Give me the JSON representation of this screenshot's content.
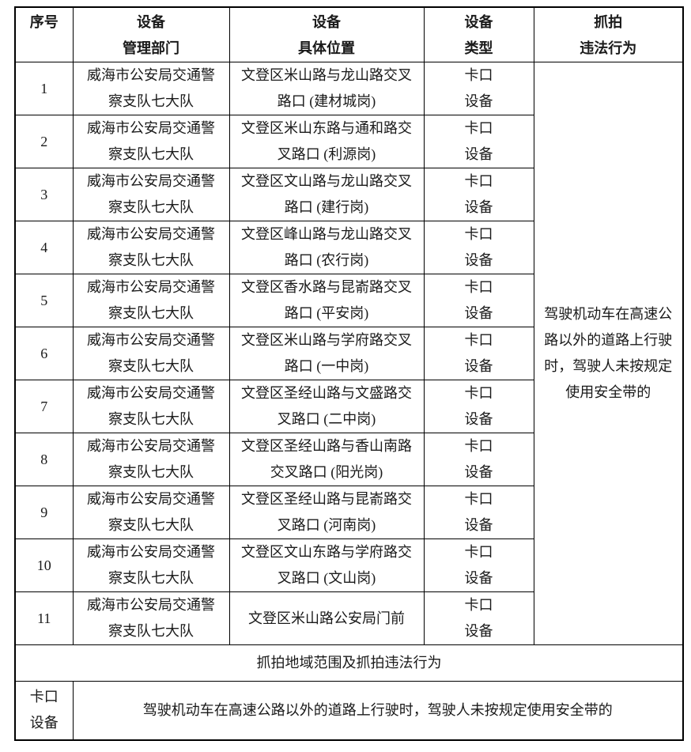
{
  "colors": {
    "background": "#ffffff",
    "border": "#000000",
    "text": "#1a1a1a"
  },
  "table": {
    "headers": [
      "序号",
      "设备\n管理部门",
      "设备\n具体位置",
      "设备\n类型",
      "抓拍\n违法行为"
    ],
    "rows": [
      {
        "no": "1",
        "dept": "威海市公安局交通警\n察支队七大队",
        "location": "文登区米山路与龙山路交叉\n路口 (建材城岗)",
        "type": "卡口\n设备"
      },
      {
        "no": "2",
        "dept": "威海市公安局交通警\n察支队七大队",
        "location": "文登区米山东路与通和路交\n叉路口 (利源岗)",
        "type": "卡口\n设备"
      },
      {
        "no": "3",
        "dept": "威海市公安局交通警\n察支队七大队",
        "location": "文登区文山路与龙山路交叉\n路口 (建行岗)",
        "type": "卡口\n设备"
      },
      {
        "no": "4",
        "dept": "威海市公安局交通警\n察支队七大队",
        "location": "文登区峰山路与龙山路交叉\n路口 (农行岗)",
        "type": "卡口\n设备"
      },
      {
        "no": "5",
        "dept": "威海市公安局交通警\n察支队七大队",
        "location": "文登区香水路与昆嵛路交叉\n路口 (平安岗)",
        "type": "卡口\n设备"
      },
      {
        "no": "6",
        "dept": "威海市公安局交通警\n察支队七大队",
        "location": "文登区米山路与学府路交叉\n路口 (一中岗)",
        "type": "卡口\n设备"
      },
      {
        "no": "7",
        "dept": "威海市公安局交通警\n察支队七大队",
        "location": "文登区圣经山路与文盛路交\n叉路口 (二中岗)",
        "type": "卡口\n设备"
      },
      {
        "no": "8",
        "dept": "威海市公安局交通警\n察支队七大队",
        "location": "文登区圣经山路与香山南路\n交叉路口 (阳光岗)",
        "type": "卡口\n设备"
      },
      {
        "no": "9",
        "dept": "威海市公安局交通警\n察支队七大队",
        "location": "文登区圣经山路与昆嵛路交\n叉路口 (河南岗)",
        "type": "卡口\n设备"
      },
      {
        "no": "10",
        "dept": "威海市公安局交通警\n察支队七大队",
        "location": "文登区文山东路与学府路交\n叉路口 (文山岗)",
        "type": "卡口\n设备"
      },
      {
        "no": "11",
        "dept": "威海市公安局交通警\n察支队七大队",
        "location": "文登区米山路公安局门前",
        "type": "卡口\n设备"
      }
    ],
    "merged_violation": "驾驶机动车在高速公\n路以外的道路上行驶\n时，驾驶人未按规定\n使用安全带的",
    "section_title": "抓拍地域范围及抓拍违法行为",
    "footer_type": "卡口\n设备",
    "footer_violation": "驾驶机动车在高速公路以外的道路上行驶时，驾驶人未按规定使用安全带的"
  }
}
